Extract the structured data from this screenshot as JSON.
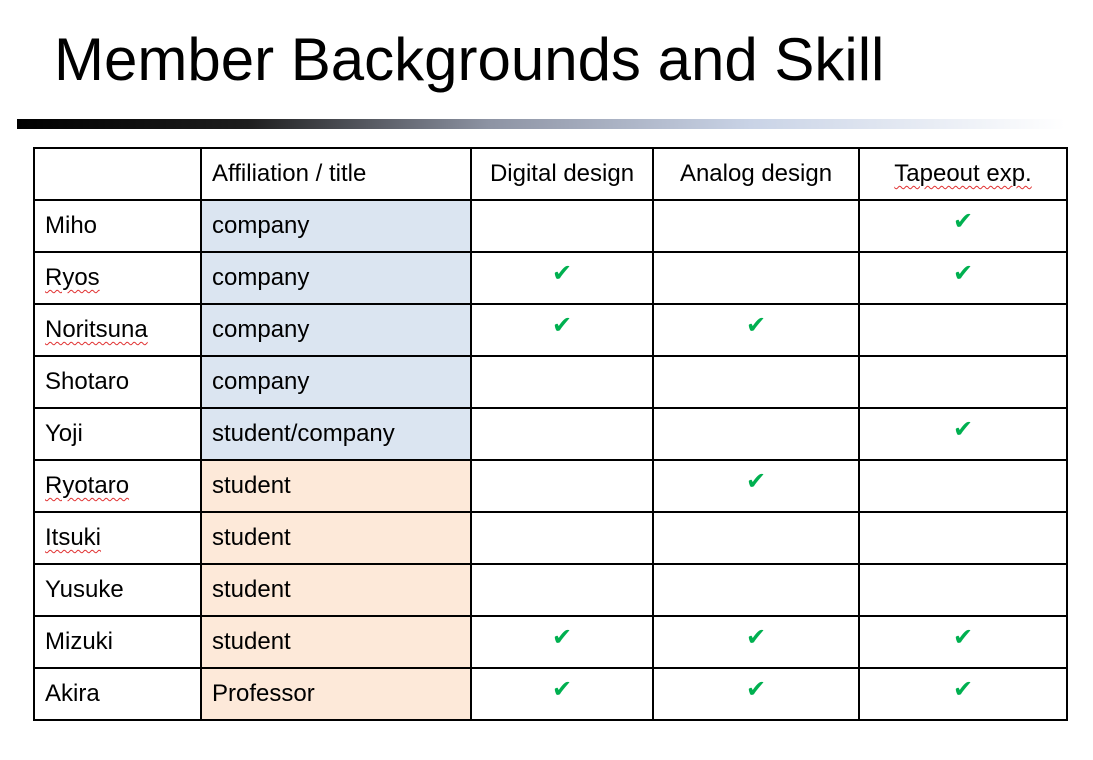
{
  "slide": {
    "title": "Member Backgrounds and Skill"
  },
  "colors": {
    "company_fill": "#dbe5f1",
    "student_fill": "#fde9d9",
    "check_color": "#00b050",
    "rule_start": "#000000",
    "rule_end": "#ffffff"
  },
  "icons": {
    "check": "check-mark-icon"
  },
  "table": {
    "headers": [
      "",
      "Affiliation / title",
      "Digital design",
      "Analog design",
      "Tapeout exp."
    ],
    "check_glyph": "✔",
    "rows": [
      {
        "name": "Miho",
        "affiliation": "company",
        "group": "company",
        "digital": false,
        "analog": false,
        "tapeout": true,
        "spell_flag": false
      },
      {
        "name": "Ryos",
        "affiliation": "company",
        "group": "company",
        "digital": true,
        "analog": false,
        "tapeout": true,
        "spell_flag": true
      },
      {
        "name": "Noritsuna",
        "affiliation": "company",
        "group": "company",
        "digital": true,
        "analog": true,
        "tapeout": false,
        "spell_flag": true
      },
      {
        "name": "Shotaro",
        "affiliation": "company",
        "group": "company",
        "digital": false,
        "analog": false,
        "tapeout": false,
        "spell_flag": false
      },
      {
        "name": "Yoji",
        "affiliation": "student/company",
        "group": "company",
        "digital": false,
        "analog": false,
        "tapeout": true,
        "spell_flag": false
      },
      {
        "name": "Ryotaro",
        "affiliation": "student",
        "group": "student",
        "digital": false,
        "analog": true,
        "tapeout": false,
        "spell_flag": true
      },
      {
        "name": "Itsuki",
        "affiliation": "student",
        "group": "student",
        "digital": false,
        "analog": false,
        "tapeout": false,
        "spell_flag": true
      },
      {
        "name": "Yusuke",
        "affiliation": "student",
        "group": "student",
        "digital": false,
        "analog": false,
        "tapeout": false,
        "spell_flag": false
      },
      {
        "name": "Mizuki",
        "affiliation": "student",
        "group": "student",
        "digital": true,
        "analog": true,
        "tapeout": true,
        "spell_flag": false
      },
      {
        "name": "Akira",
        "affiliation": "Professor",
        "group": "student",
        "digital": true,
        "analog": true,
        "tapeout": true,
        "spell_flag": false
      }
    ]
  }
}
